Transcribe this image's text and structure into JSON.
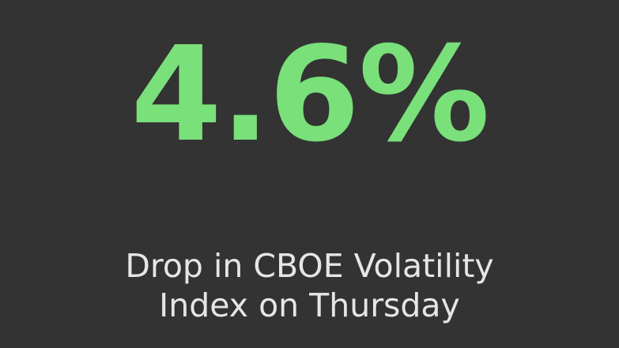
{
  "stat": {
    "value": "4.6%",
    "caption_lines": [
      "Drop in CBOE Volatility",
      "Index on Thursday"
    ]
  },
  "colors": {
    "background": "#333333",
    "value": "#79E07A",
    "caption": "#E6E6E6"
  }
}
